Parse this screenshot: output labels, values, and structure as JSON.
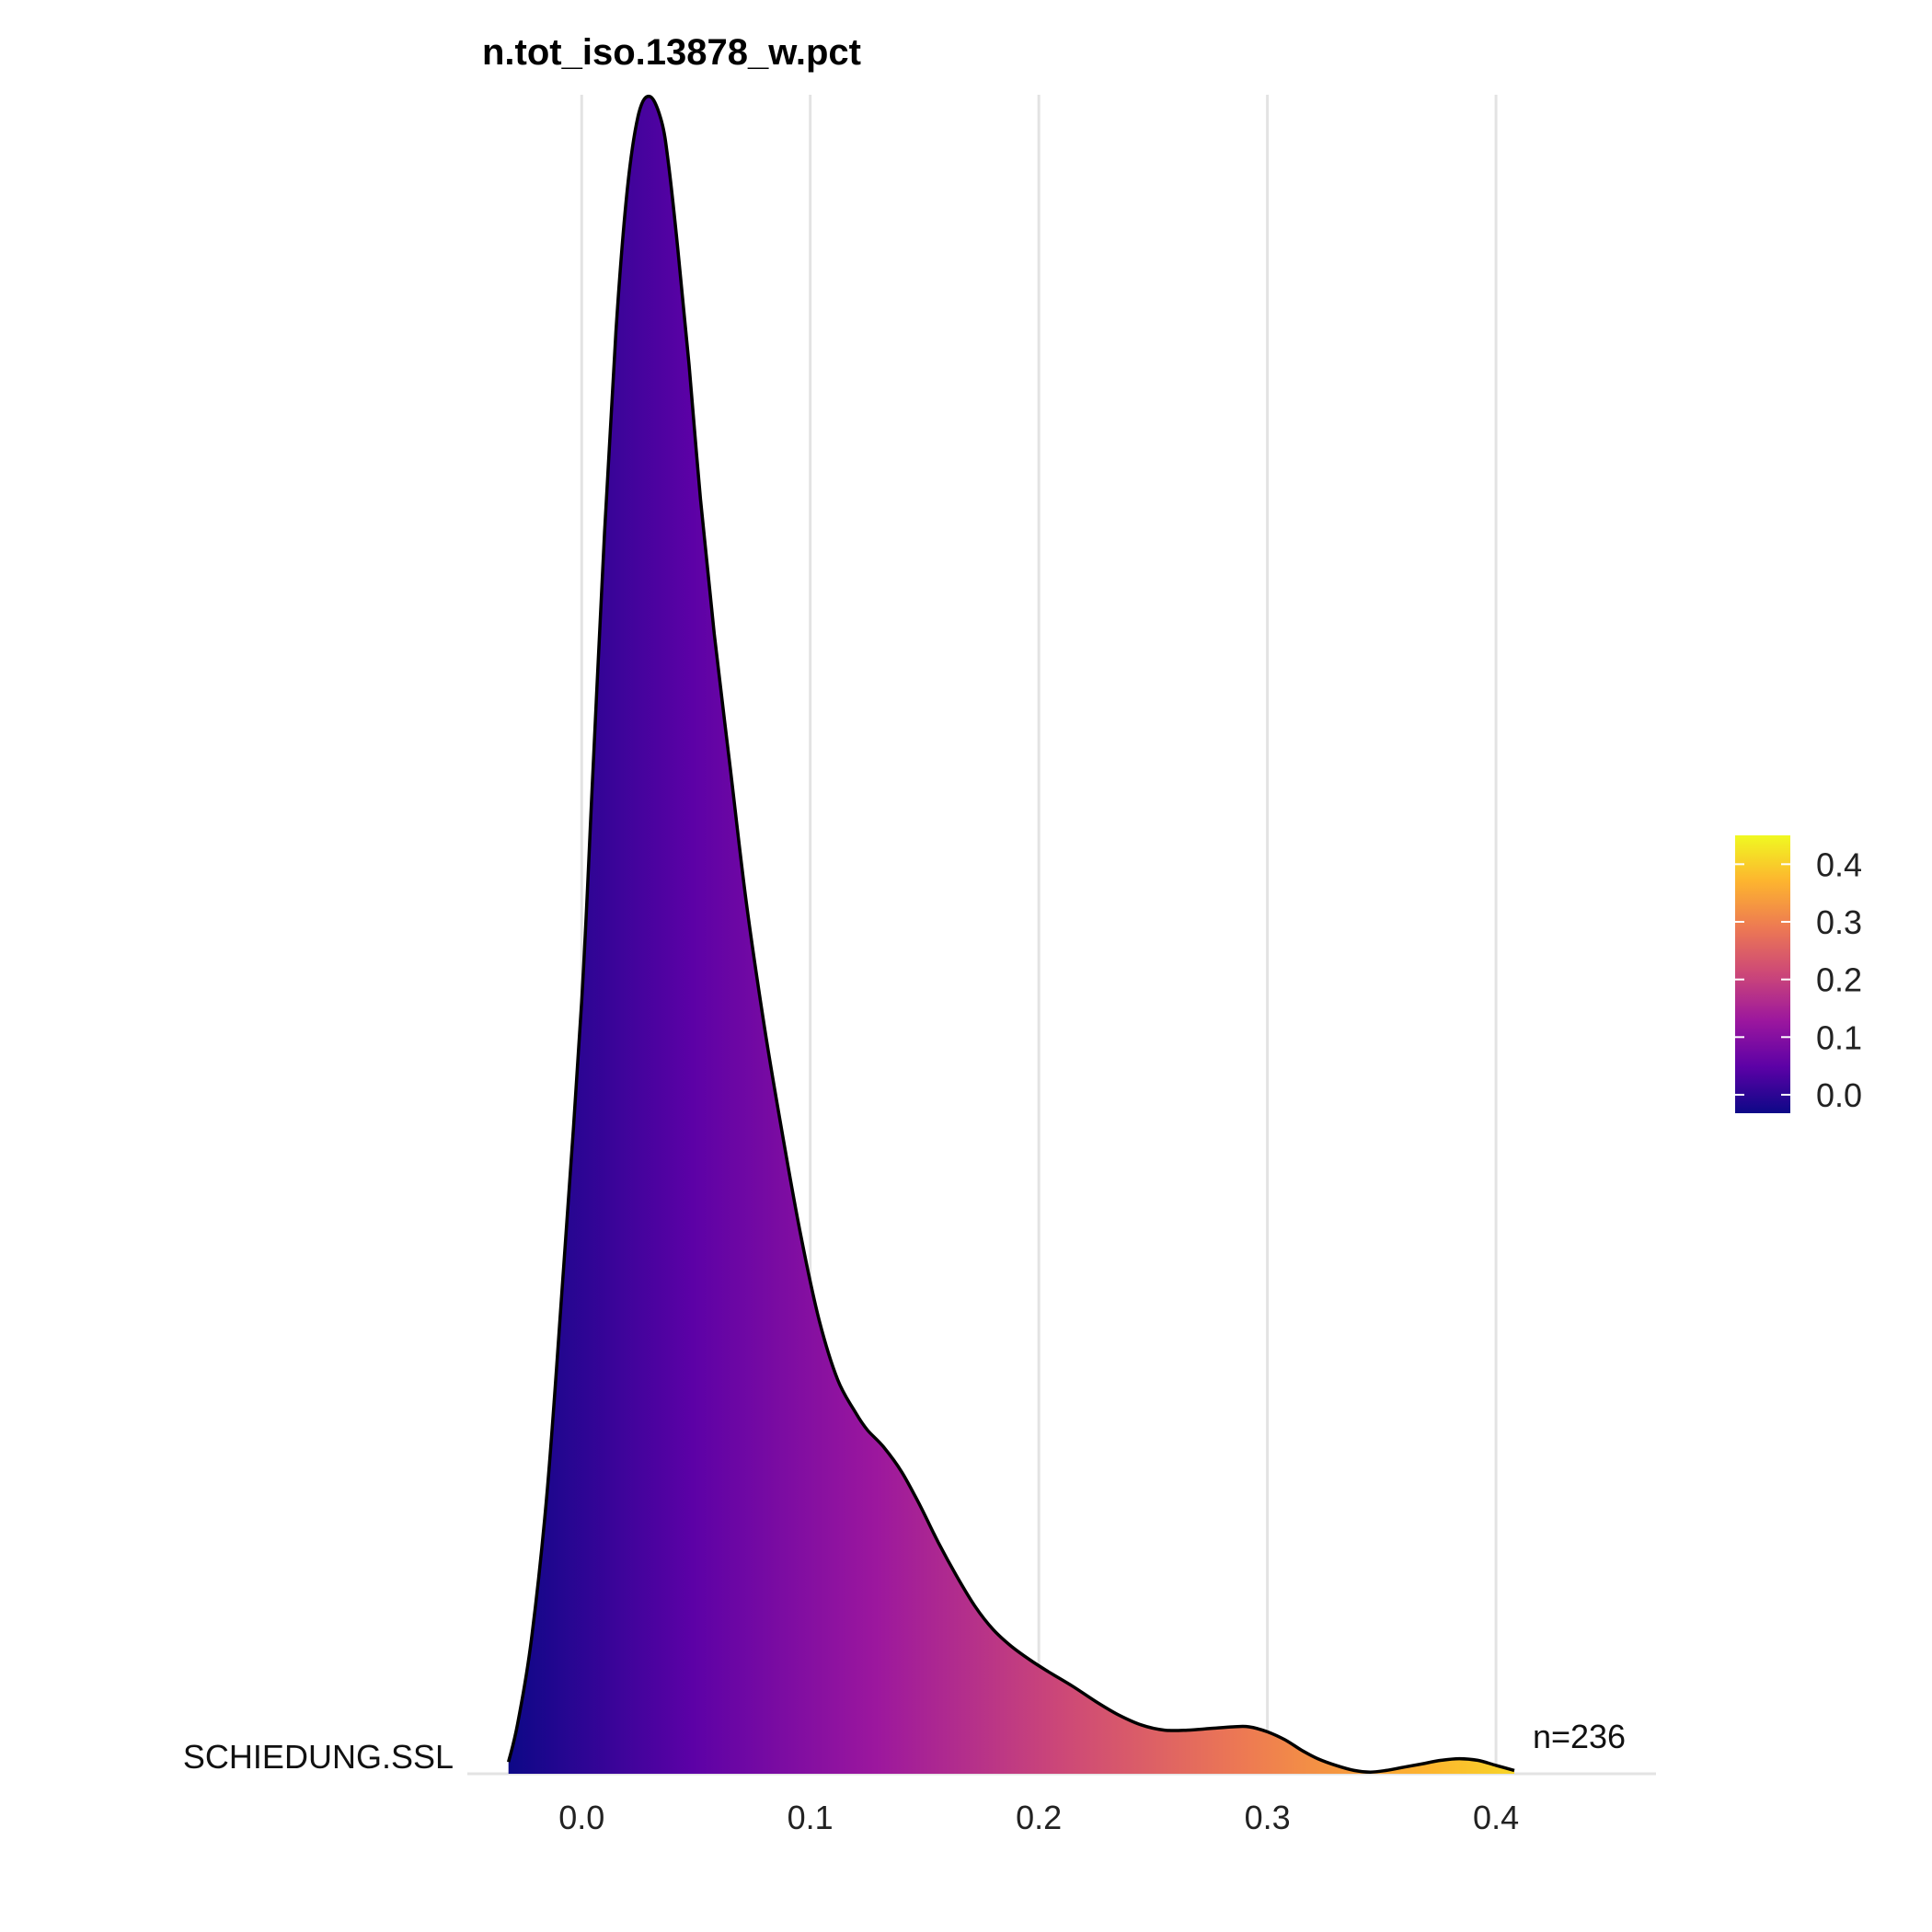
{
  "chart_data": {
    "type": "ridgeline-density",
    "title": "n.tot_iso.13878_w.pct",
    "category": "SCHIEDUNG.SSL",
    "annotation": "n=236",
    "xlim": [
      -0.05,
      0.47
    ],
    "x_ticks": [
      0.0,
      0.1,
      0.2,
      0.3,
      0.4
    ],
    "x_tick_labels": [
      "0.0",
      "0.1",
      "0.2",
      "0.3",
      "0.4"
    ],
    "grid": "vertical",
    "density": {
      "x": [
        -0.032,
        -0.028,
        -0.022,
        -0.015,
        -0.008,
        0.0,
        0.005,
        0.01,
        0.015,
        0.02,
        0.025,
        0.03,
        0.035,
        0.038,
        0.042,
        0.047,
        0.052,
        0.058,
        0.065,
        0.072,
        0.08,
        0.088,
        0.096,
        0.104,
        0.112,
        0.12,
        0.125,
        0.132,
        0.14,
        0.148,
        0.156,
        0.164,
        0.172,
        0.18,
        0.188,
        0.196,
        0.204,
        0.215,
        0.225,
        0.235,
        0.245,
        0.255,
        0.265,
        0.275,
        0.285,
        0.292,
        0.3,
        0.308,
        0.315,
        0.322,
        0.33,
        0.338,
        0.345,
        0.352,
        0.36,
        0.368,
        0.376,
        0.384,
        0.392,
        0.4,
        0.408
      ],
      "y": [
        0.007,
        0.03,
        0.08,
        0.17,
        0.3,
        0.46,
        0.6,
        0.74,
        0.86,
        0.945,
        0.99,
        1.0,
        0.985,
        0.96,
        0.91,
        0.84,
        0.76,
        0.68,
        0.6,
        0.52,
        0.445,
        0.38,
        0.32,
        0.27,
        0.235,
        0.215,
        0.205,
        0.195,
        0.18,
        0.16,
        0.138,
        0.118,
        0.1,
        0.086,
        0.076,
        0.068,
        0.061,
        0.052,
        0.043,
        0.035,
        0.029,
        0.026,
        0.026,
        0.027,
        0.028,
        0.028,
        0.025,
        0.02,
        0.014,
        0.009,
        0.005,
        0.002,
        0.001,
        0.002,
        0.004,
        0.006,
        0.008,
        0.009,
        0.008,
        0.005,
        0.002
      ]
    },
    "fill_scale": {
      "type": "continuous",
      "palette": "plasma",
      "stops": [
        "#0d0887",
        "#5c01a6",
        "#9c179e",
        "#cc4778",
        "#ed7953",
        "#fdb42f",
        "#f0f921"
      ],
      "range": [
        -0.032,
        0.45
      ],
      "ticks": [
        0.0,
        0.1,
        0.2,
        0.3,
        0.4
      ],
      "tick_labels": [
        "0.0",
        "0.1",
        "0.2",
        "0.3",
        "0.4"
      ]
    }
  }
}
